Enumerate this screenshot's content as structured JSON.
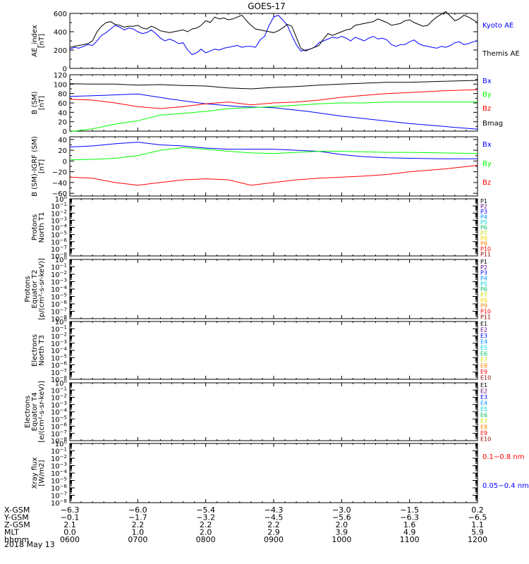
{
  "title": "GOES-17",
  "chart_data": [
    {
      "type": "line",
      "panel": "ae",
      "ylabel": [
        "AE_index",
        "[nT]"
      ],
      "ylim": [
        0,
        600
      ],
      "ymajor": [
        0,
        200,
        400,
        600
      ],
      "ytick_labels": [
        "0",
        "200",
        "400",
        "600"
      ],
      "series": [
        {
          "name": "Kyoto AE",
          "color": "#0000ff",
          "x": [
            0,
            4,
            8,
            12,
            16,
            20,
            24,
            28,
            32,
            36,
            40,
            44,
            48,
            52,
            56,
            60,
            64,
            68,
            72,
            76,
            80,
            84,
            88,
            92,
            96,
            100,
            104,
            108,
            112,
            116,
            120,
            124,
            128,
            132,
            136,
            140,
            144,
            148,
            152,
            156,
            160,
            164,
            168,
            172,
            176,
            180,
            184,
            188,
            192,
            196,
            200,
            204,
            208,
            212,
            216,
            220,
            224,
            228,
            232,
            236,
            240,
            244,
            248,
            252,
            256,
            260,
            264,
            268,
            272,
            276,
            280,
            284,
            288,
            292,
            296,
            300,
            304,
            308,
            312,
            316,
            320,
            324,
            328,
            332,
            336,
            340,
            344,
            348,
            352,
            356,
            360
          ],
          "y": [
            210,
            230,
            220,
            240,
            260,
            250,
            300,
            360,
            390,
            430,
            470,
            450,
            420,
            440,
            430,
            400,
            380,
            390,
            420,
            380,
            330,
            300,
            320,
            300,
            270,
            280,
            200,
            150,
            170,
            210,
            170,
            190,
            210,
            200,
            220,
            230,
            240,
            250,
            230,
            240,
            240,
            230,
            310,
            350,
            470,
            560,
            580,
            530,
            470,
            360,
            260,
            190,
            200,
            210,
            230,
            280,
            300,
            320,
            340,
            330,
            350,
            330,
            300,
            340,
            320,
            300,
            330,
            350,
            320,
            330,
            310,
            260,
            240,
            260,
            260,
            290,
            310,
            270,
            250,
            240,
            230,
            220,
            240,
            230,
            250,
            280,
            290,
            260,
            270,
            290,
            300
          ]
        },
        {
          "name": "Themis AE",
          "color": "#000000",
          "x": [
            0,
            4,
            8,
            12,
            16,
            20,
            24,
            28,
            32,
            36,
            40,
            44,
            48,
            52,
            56,
            60,
            64,
            68,
            72,
            76,
            80,
            84,
            88,
            92,
            96,
            100,
            104,
            108,
            112,
            116,
            120,
            124,
            128,
            132,
            136,
            140,
            144,
            148,
            152,
            156,
            160,
            164,
            168,
            172,
            176,
            180,
            184,
            188,
            192,
            196,
            200,
            204,
            208,
            212,
            216,
            220,
            224,
            228,
            232,
            236,
            240,
            244,
            248,
            252,
            256,
            260,
            264,
            268,
            272,
            276,
            280,
            284,
            288,
            292,
            296,
            300,
            304,
            308,
            312,
            316,
            320,
            324,
            328,
            332,
            336,
            340,
            344,
            348,
            352,
            356,
            360
          ],
          "y": [
            230,
            240,
            250,
            260,
            270,
            300,
            400,
            460,
            500,
            510,
            480,
            470,
            450,
            460,
            460,
            470,
            440,
            430,
            460,
            440,
            410,
            400,
            390,
            400,
            410,
            420,
            400,
            430,
            440,
            470,
            520,
            500,
            560,
            540,
            550,
            530,
            540,
            560,
            580,
            520,
            470,
            430,
            420,
            410,
            400,
            390,
            410,
            440,
            480,
            460,
            340,
            220,
            190,
            210,
            230,
            250,
            320,
            380,
            360,
            380,
            400,
            420,
            430,
            470,
            480,
            490,
            500,
            510,
            540,
            520,
            500,
            470,
            480,
            490,
            520,
            530,
            500,
            480,
            460,
            470,
            520,
            560,
            590,
            620,
            570,
            520,
            540,
            580,
            560,
            530,
            500
          ]
        }
      ]
    },
    {
      "type": "line",
      "panel": "bsm",
      "ylabel": [
        "B (SM)",
        "[nT]"
      ],
      "ylim": [
        0,
        120
      ],
      "ymajor": [
        0,
        20,
        40,
        60,
        80,
        100,
        120
      ],
      "ytick_labels": [
        "0",
        "20",
        "40",
        "60",
        "80",
        "100",
        "120"
      ],
      "series": [
        {
          "name": "Bx",
          "color": "#0000ff",
          "x": [
            0,
            30,
            60,
            90,
            120,
            150,
            180,
            210,
            240,
            270,
            300,
            330,
            360
          ],
          "y": [
            74,
            76,
            79,
            68,
            58,
            52,
            50,
            42,
            32,
            24,
            16,
            10,
            4
          ]
        },
        {
          "name": "By",
          "color": "#00ff00",
          "x": [
            0,
            20,
            40,
            60,
            80,
            100,
            120,
            140,
            160,
            180,
            200,
            220,
            240,
            260,
            280,
            300,
            330,
            360
          ],
          "y": [
            -1,
            5,
            15,
            22,
            34,
            38,
            42,
            48,
            50,
            52,
            55,
            58,
            60,
            60,
            62,
            62,
            62,
            62
          ]
        },
        {
          "name": "Bz",
          "color": "#ff0000",
          "x": [
            0,
            20,
            40,
            60,
            80,
            100,
            120,
            140,
            160,
            180,
            200,
            220,
            240,
            260,
            280,
            300,
            330,
            360
          ],
          "y": [
            68,
            66,
            60,
            52,
            48,
            52,
            58,
            62,
            56,
            60,
            62,
            66,
            72,
            76,
            80,
            82,
            86,
            88
          ]
        },
        {
          "name": "Bmag",
          "color": "#000000",
          "x": [
            0,
            20,
            40,
            60,
            80,
            100,
            120,
            140,
            160,
            180,
            200,
            220,
            240,
            260,
            280,
            300,
            330,
            360
          ],
          "y": [
            101,
            100,
            100,
            98,
            99,
            97,
            96,
            92,
            90,
            93,
            95,
            98,
            100,
            102,
            104,
            104,
            106,
            108
          ]
        }
      ]
    },
    {
      "type": "line",
      "panel": "bigrf",
      "ylabel": [
        "B (SM)-IGRF (SM)",
        "[nT]"
      ],
      "ylim": [
        -65,
        45
      ],
      "ymajor": [
        -60,
        -40,
        -20,
        0,
        20,
        40
      ],
      "ytick_labels": [
        "−60",
        "−40",
        "−20",
        "0",
        "20",
        "40"
      ],
      "series": [
        {
          "name": "Bx",
          "color": "#0000ff",
          "x": [
            0,
            20,
            40,
            60,
            80,
            100,
            120,
            140,
            160,
            180,
            200,
            220,
            240,
            260,
            280,
            300,
            330,
            360
          ],
          "y": [
            26,
            28,
            32,
            35,
            30,
            28,
            24,
            22,
            22,
            22,
            20,
            18,
            12,
            8,
            6,
            5,
            4,
            4
          ]
        },
        {
          "name": "By",
          "color": "#00ff00",
          "x": [
            0,
            20,
            40,
            60,
            80,
            100,
            120,
            140,
            160,
            180,
            200,
            220,
            240,
            260,
            280,
            300,
            330,
            360
          ],
          "y": [
            2,
            3,
            5,
            10,
            20,
            25,
            22,
            18,
            15,
            14,
            16,
            18,
            18,
            17,
            16,
            16,
            15,
            14
          ]
        },
        {
          "name": "Bz",
          "color": "#ff0000",
          "x": [
            0,
            20,
            40,
            60,
            80,
            100,
            120,
            140,
            160,
            180,
            200,
            220,
            240,
            260,
            280,
            300,
            330,
            360
          ],
          "y": [
            -30,
            -32,
            -40,
            -45,
            -40,
            -35,
            -33,
            -35,
            -45,
            -40,
            -35,
            -32,
            -30,
            -28,
            -25,
            -20,
            -15,
            -8
          ]
        }
      ]
    },
    {
      "type": "line",
      "panel": "pn",
      "ylabel": [
        "Protons",
        "North T1"
      ],
      "yexp": [
        -8,
        0
      ],
      "series": [],
      "legend": [
        {
          "t": "P1",
          "c": "#000000"
        },
        {
          "t": "P2",
          "c": "#5a0080"
        },
        {
          "t": "P3",
          "c": "#0000ff"
        },
        {
          "t": "P4",
          "c": "#0090ff"
        },
        {
          "t": "P5",
          "c": "#00d8d8"
        },
        {
          "t": "P6",
          "c": "#00c060"
        },
        {
          "t": "P7",
          "c": "#c8e000"
        },
        {
          "t": "P8",
          "c": "#ffd000"
        },
        {
          "t": "P9",
          "c": "#ff8000"
        },
        {
          "t": "P10",
          "c": "#ff0000"
        },
        {
          "t": "P11",
          "c": "#900000"
        }
      ]
    },
    {
      "type": "line",
      "panel": "pe",
      "ylabel": [
        "Protons",
        "Equator T2",
        "[p/(cm²-s-sr-keV)]"
      ],
      "yexp": [
        -8,
        0
      ],
      "series": [],
      "legend": [
        {
          "t": "P1",
          "c": "#000000"
        },
        {
          "t": "P2",
          "c": "#5a0080"
        },
        {
          "t": "P3",
          "c": "#0000ff"
        },
        {
          "t": "P4",
          "c": "#0090ff"
        },
        {
          "t": "P5",
          "c": "#00d8d8"
        },
        {
          "t": "P6",
          "c": "#00c060"
        },
        {
          "t": "P7",
          "c": "#c8e000"
        },
        {
          "t": "P8",
          "c": "#ffd000"
        },
        {
          "t": "P9",
          "c": "#ff8000"
        },
        {
          "t": "P10",
          "c": "#ff0000"
        },
        {
          "t": "P11",
          "c": "#900000"
        }
      ]
    },
    {
      "type": "line",
      "panel": "en",
      "ylabel": [
        "Electrons",
        "North T3"
      ],
      "yexp": [
        -8,
        0
      ],
      "series": [],
      "legend": [
        {
          "t": "E1",
          "c": "#000000"
        },
        {
          "t": "E2",
          "c": "#5a0080"
        },
        {
          "t": "E3",
          "c": "#0000ff"
        },
        {
          "t": "E4",
          "c": "#0090ff"
        },
        {
          "t": "E5",
          "c": "#00d8d8"
        },
        {
          "t": "E6",
          "c": "#00c060"
        },
        {
          "t": "E7",
          "c": "#c8e000"
        },
        {
          "t": "E8",
          "c": "#ff8000"
        },
        {
          "t": "E9",
          "c": "#ff0000"
        },
        {
          "t": "E10",
          "c": "#900000"
        }
      ]
    },
    {
      "type": "line",
      "panel": "ee",
      "ylabel": [
        "Electrons",
        "Equator T4",
        "[e/(cm²-s-sr-keV)]"
      ],
      "yexp": [
        -8,
        0
      ],
      "series": [],
      "legend": [
        {
          "t": "E1",
          "c": "#000000"
        },
        {
          "t": "E2",
          "c": "#5a0080"
        },
        {
          "t": "E3",
          "c": "#0000ff"
        },
        {
          "t": "E4",
          "c": "#0090ff"
        },
        {
          "t": "E5",
          "c": "#00d8d8"
        },
        {
          "t": "E6",
          "c": "#00c060"
        },
        {
          "t": "E7",
          "c": "#c8e000"
        },
        {
          "t": "E8",
          "c": "#ff8000"
        },
        {
          "t": "E9",
          "c": "#ff0000"
        },
        {
          "t": "E10",
          "c": "#900000"
        }
      ]
    },
    {
      "type": "line",
      "panel": "xr",
      "ylabel": [
        "Xray flux",
        "[W/m2]"
      ],
      "yexp": [
        -8,
        0
      ],
      "series": [],
      "legend": [
        {
          "t": "0.1−0.8 nm",
          "c": "#ff0000"
        },
        {
          "t": "0.05−0.4 nm",
          "c": "#0000ff"
        }
      ]
    }
  ],
  "ae_legend": [
    {
      "t": "Kyoto AE",
      "c": "#0000ff"
    },
    {
      "t": "Themis AE",
      "c": "#000000"
    }
  ],
  "bsm_legend": [
    {
      "t": "Bx",
      "c": "#0000ff"
    },
    {
      "t": "By",
      "c": "#00ff00"
    },
    {
      "t": "Bz",
      "c": "#ff0000"
    },
    {
      "t": "Bmag",
      "c": "#000000"
    }
  ],
  "bigrf_legend": [
    {
      "t": "Bx",
      "c": "#0000ff"
    },
    {
      "t": "By",
      "c": "#00ff00"
    },
    {
      "t": "Bz",
      "c": "#ff0000"
    }
  ],
  "x_axis": {
    "xlim": [
      0,
      360
    ],
    "major": [
      0,
      60,
      120,
      180,
      240,
      300,
      360
    ],
    "rows": [
      {
        "label": "X-GSM",
        "values": [
          "−6.3",
          "−6.0",
          "−5.4",
          "−4.3",
          "−3.0",
          "−1.5",
          "0.2"
        ]
      },
      {
        "label": "Y-GSM",
        "values": [
          "−0.1",
          "−1.7",
          "−3.2",
          "−4.5",
          "−5.6",
          "−6.3",
          "−6.5"
        ]
      },
      {
        "label": "Z-GSM",
        "values": [
          "2.1",
          "2.2",
          "2.2",
          "2.2",
          "2.0",
          "1.6",
          "1.1"
        ]
      },
      {
        "label": "MLT",
        "values": [
          "0.0",
          "1.0",
          "2.0",
          "2.9",
          "3.9",
          "4.9",
          "5.9"
        ]
      },
      {
        "label": "hhmm",
        "values": [
          "0600",
          "0700",
          "0800",
          "0900",
          "1000",
          "1100",
          "1200"
        ]
      }
    ],
    "date": "2018 May 13"
  }
}
